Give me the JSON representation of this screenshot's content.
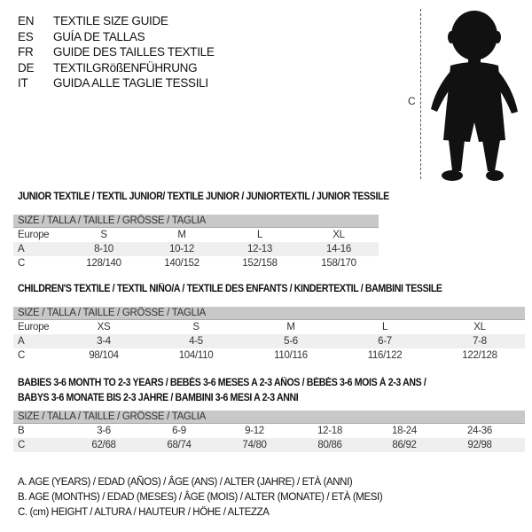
{
  "languages": [
    {
      "code": "EN",
      "label": "TEXTILE SIZE GUIDE"
    },
    {
      "code": "ES",
      "label": "GUÍA DE TALLAS"
    },
    {
      "code": "FR",
      "label": "GUIDE DES TAILLES TEXTILE"
    },
    {
      "code": "DE",
      "label": "TEXTILGRößENFÜHRUNG"
    },
    {
      "code": "IT",
      "label": "GUIDA ALLE TAGLIE TESSILI"
    }
  ],
  "figure": {
    "measure_label": "C"
  },
  "size_header": "SIZE / TALLA / TAILLE / GRÖSSE / TAGLIA",
  "junior": {
    "title": "JUNIOR TEXTILE / TEXTIL JUNIOR/ TEXTILE JUNIOR / JUNIORTEXTIL / JUNIOR TESSILE",
    "rows": [
      {
        "label": "Europe",
        "values": [
          "S",
          "M",
          "L",
          "XL"
        ]
      },
      {
        "label": "A",
        "values": [
          "8-10",
          "10-12",
          "12-13",
          "14-16"
        ]
      },
      {
        "label": "C",
        "values": [
          "128/140",
          "140/152",
          "152/158",
          "158/170"
        ]
      }
    ]
  },
  "children": {
    "title": "CHILDREN'S TEXTILE / TEXTIL NIÑO/A / TEXTILE DES ENFANTS / KINDERTEXTIL / BAMBINI TESSILE",
    "rows": [
      {
        "label": "Europe",
        "values": [
          "XS",
          "S",
          "M",
          "L",
          "XL"
        ]
      },
      {
        "label": "A",
        "values": [
          "3-4",
          "4-5",
          "5-6",
          "6-7",
          "7-8"
        ]
      },
      {
        "label": "C",
        "values": [
          "98/104",
          "104/110",
          "110/116",
          "116/122",
          "122/128"
        ]
      }
    ]
  },
  "babies": {
    "title_line1": "BABIES 3-6 MONTH TO 2-3 YEARS / BEBÉS 3-6 MESES A 2-3 AÑOS / BÉBÉS 3-6 MOIS À 2-3 ANS /",
    "title_line2": "BABYS 3-6 MONATE BIS 2-3 JAHRE / BAMBINI 3-6 MESI A 2-3 ANNI",
    "rows": [
      {
        "label": "B",
        "values": [
          "3-6",
          "6-9",
          "9-12",
          "12-18",
          "18-24",
          "24-36"
        ]
      },
      {
        "label": "C",
        "values": [
          "62/68",
          "68/74",
          "74/80",
          "80/86",
          "86/92",
          "92/98"
        ]
      }
    ]
  },
  "legend": [
    "A. AGE (YEARS) / EDAD (AÑOS) / ÂGE (ANS) / ALTER (JAHRE) / ETÀ (ANNI)",
    "B. AGE (MONTHS) / EDAD (MESES) / ÂGE (MOIS) / ALTER (MONATE) / ETÀ (MESI)",
    "C. (cm) HEIGHT / ALTURA / HAUTEUR / HÖHE / ALTEZZA"
  ]
}
